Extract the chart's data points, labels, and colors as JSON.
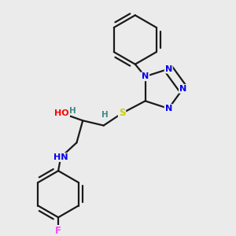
{
  "background_color": "#ebebeb",
  "atom_colors": {
    "N": "#0000ee",
    "O": "#ff0000",
    "S": "#cccc00",
    "F": "#ff44ff",
    "C": "#1a1a1a",
    "H": "#448888"
  },
  "bond_color": "#1a1a1a",
  "bond_width": 1.6,
  "dbo": 0.018,
  "figsize": [
    3.0,
    3.0
  ],
  "dpi": 100
}
